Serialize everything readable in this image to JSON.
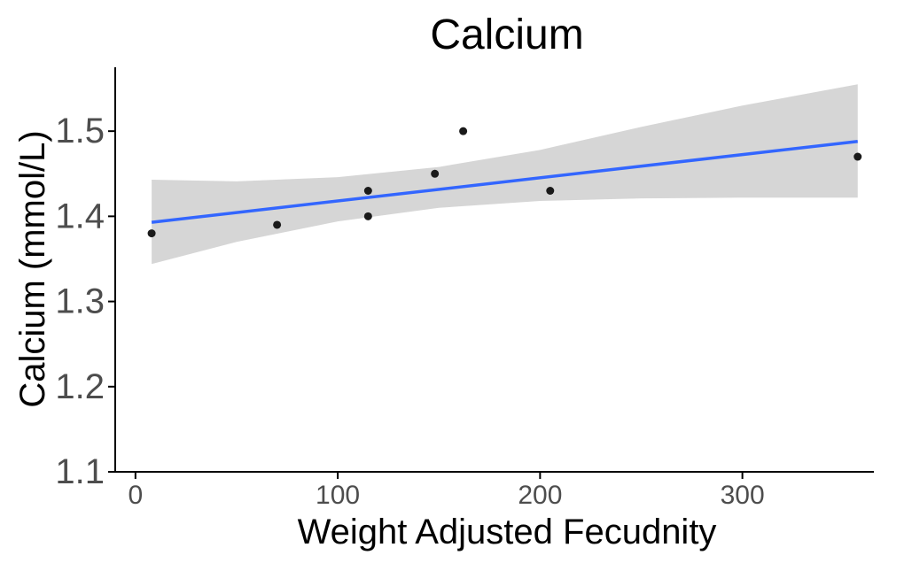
{
  "chart_data": {
    "type": "scatter",
    "title": "Calcium",
    "xlabel": "Weight Adjusted Fecudnity",
    "ylabel": "Calcium (mmol/L)",
    "xlim": [
      -10,
      365
    ],
    "ylim": [
      1.1,
      1.575
    ],
    "x_ticks": [
      0,
      100,
      200,
      300
    ],
    "y_ticks": [
      1.1,
      1.2,
      1.3,
      1.4,
      1.5
    ],
    "x_tick_labels": [
      "0",
      "100",
      "200",
      "300"
    ],
    "y_tick_labels": [
      "1.1",
      "1.2",
      "1.3",
      "1.4",
      "1.5"
    ],
    "grid": false,
    "points": [
      {
        "x": 8,
        "y": 1.38
      },
      {
        "x": 70,
        "y": 1.39
      },
      {
        "x": 115,
        "y": 1.43
      },
      {
        "x": 115,
        "y": 1.4
      },
      {
        "x": 148,
        "y": 1.45
      },
      {
        "x": 162,
        "y": 1.5
      },
      {
        "x": 205,
        "y": 1.43
      },
      {
        "x": 357,
        "y": 1.47
      }
    ],
    "trend_line": {
      "method": "linear",
      "x": [
        8,
        357
      ],
      "y": [
        1.393,
        1.488
      ]
    },
    "confidence_band": {
      "x": [
        8,
        50,
        100,
        150,
        200,
        250,
        300,
        357
      ],
      "lower": [
        1.344,
        1.37,
        1.394,
        1.41,
        1.418,
        1.421,
        1.422,
        1.422
      ],
      "upper": [
        1.443,
        1.441,
        1.446,
        1.458,
        1.478,
        1.505,
        1.53,
        1.555
      ]
    },
    "colors": {
      "points": "#1a1a1a",
      "trend_line": "#3366ff",
      "band": "#d6d6d6",
      "axis": "#000000",
      "tick_label": "#4d4d4d"
    }
  }
}
